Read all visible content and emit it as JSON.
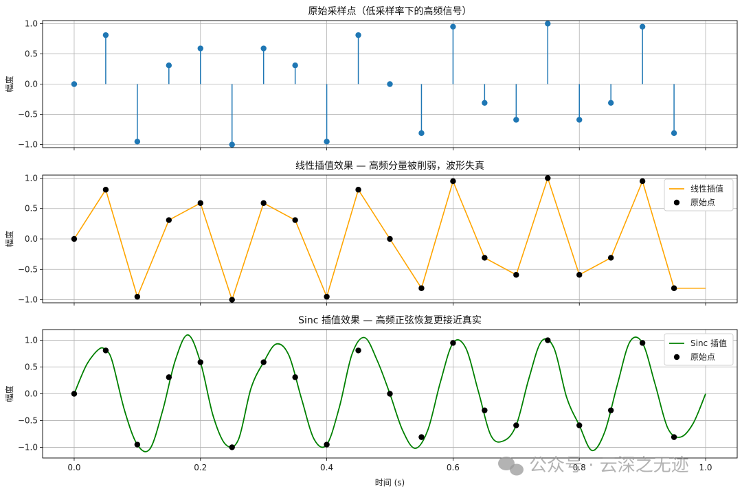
{
  "chart_data": [
    {
      "type": "stem",
      "title": "原始采样点（低采样率下的高频信号）",
      "ylabel": "幅度",
      "xlim": [
        -0.05,
        1.05
      ],
      "ylim": [
        -1.05,
        1.05
      ],
      "xticks": [
        0.0,
        0.2,
        0.4,
        0.6,
        0.8,
        1.0
      ],
      "yticks": [
        -1.0,
        -0.5,
        0.0,
        0.5,
        1.0
      ],
      "ytick_labels": [
        "−1.0",
        "−0.5",
        "0.0",
        "0.5",
        "1.0"
      ],
      "grid": true,
      "color": "#1f77b4",
      "series": [
        {
          "x": [
            0.0,
            0.05,
            0.1,
            0.15,
            0.2,
            0.25,
            0.3,
            0.35,
            0.4,
            0.45,
            0.5,
            0.55,
            0.6,
            0.65,
            0.7,
            0.75,
            0.8,
            0.85,
            0.9,
            0.95
          ],
          "y": [
            0.0,
            0.81,
            -0.95,
            0.31,
            0.59,
            -1.0,
            0.59,
            0.31,
            -0.95,
            0.81,
            0.0,
            -0.81,
            0.95,
            -0.31,
            -0.59,
            1.0,
            -0.59,
            -0.31,
            0.95,
            -0.81
          ]
        }
      ]
    },
    {
      "type": "line",
      "title": "线性插值效果 — 高频分量被削弱，波形失真",
      "ylabel": "幅度",
      "xlim": [
        -0.05,
        1.05
      ],
      "ylim": [
        -1.05,
        1.05
      ],
      "xticks": [
        0.0,
        0.2,
        0.4,
        0.6,
        0.8,
        1.0
      ],
      "yticks": [
        -1.0,
        -0.5,
        0.0,
        0.5,
        1.0
      ],
      "ytick_labels": [
        "−1.0",
        "−0.5",
        "0.0",
        "0.5",
        "1.0"
      ],
      "grid": true,
      "legend": "top-right",
      "series": [
        {
          "name": "线性插值",
          "color": "#ffa500",
          "x": [
            0.0,
            0.05,
            0.1,
            0.15,
            0.2,
            0.25,
            0.3,
            0.35,
            0.4,
            0.45,
            0.5,
            0.55,
            0.6,
            0.65,
            0.7,
            0.75,
            0.8,
            0.85,
            0.9,
            0.95,
            1.0
          ],
          "y": [
            0.0,
            0.81,
            -0.95,
            0.31,
            0.59,
            -1.0,
            0.59,
            0.31,
            -0.95,
            0.81,
            0.0,
            -0.81,
            0.95,
            -0.31,
            -0.59,
            1.0,
            -0.59,
            -0.31,
            0.95,
            -0.81,
            -0.81
          ]
        },
        {
          "name": "原始点",
          "color": "#000000",
          "markers_only": true,
          "x": [
            0.0,
            0.05,
            0.1,
            0.15,
            0.2,
            0.25,
            0.3,
            0.35,
            0.4,
            0.45,
            0.5,
            0.55,
            0.6,
            0.65,
            0.7,
            0.75,
            0.8,
            0.85,
            0.9,
            0.95
          ],
          "y": [
            0.0,
            0.81,
            -0.95,
            0.31,
            0.59,
            -1.0,
            0.59,
            0.31,
            -0.95,
            0.81,
            0.0,
            -0.81,
            0.95,
            -0.31,
            -0.59,
            1.0,
            -0.59,
            -0.31,
            0.95,
            -0.81
          ]
        }
      ]
    },
    {
      "type": "line",
      "title": "Sinc 插值效果 — 高频正弦恢复更接近真实",
      "ylabel": "幅度",
      "xlabel": "时间 (s)",
      "xlim": [
        -0.05,
        1.05
      ],
      "ylim": [
        -1.2,
        1.2
      ],
      "xticks": [
        0.0,
        0.2,
        0.4,
        0.6,
        0.8,
        1.0
      ],
      "xtick_labels": [
        "0.0",
        "0.2",
        "0.4",
        "0.6",
        "0.8",
        "1.0"
      ],
      "yticks": [
        -1.0,
        -0.5,
        0.0,
        0.5,
        1.0
      ],
      "ytick_labels": [
        "−1.0",
        "−0.5",
        "0.0",
        "0.5",
        "1.0"
      ],
      "grid": true,
      "legend": "top-right",
      "series": [
        {
          "name": "Sinc 插值",
          "color": "#008000",
          "x": [
            0.0,
            0.02,
            0.04,
            0.05,
            0.06,
            0.08,
            0.1,
            0.12,
            0.14,
            0.16,
            0.18,
            0.2,
            0.22,
            0.24,
            0.26,
            0.28,
            0.3,
            0.32,
            0.34,
            0.36,
            0.38,
            0.4,
            0.42,
            0.44,
            0.46,
            0.48,
            0.5,
            0.52,
            0.54,
            0.56,
            0.58,
            0.6,
            0.62,
            0.64,
            0.66,
            0.68,
            0.7,
            0.72,
            0.74,
            0.76,
            0.78,
            0.8,
            0.82,
            0.84,
            0.86,
            0.88,
            0.9,
            0.92,
            0.94,
            0.96,
            0.98,
            1.0
          ],
          "y": [
            0.0,
            0.55,
            0.84,
            0.81,
            0.62,
            -0.32,
            -0.95,
            -1.03,
            -0.32,
            0.62,
            1.1,
            0.59,
            -0.41,
            -0.95,
            -0.86,
            0.1,
            0.59,
            0.93,
            0.72,
            -0.09,
            -0.85,
            -0.95,
            -0.25,
            0.74,
            1.05,
            0.62,
            0.0,
            -0.68,
            -1.02,
            -0.68,
            0.22,
            0.95,
            0.86,
            0.05,
            -0.78,
            -0.88,
            -0.59,
            0.28,
            0.98,
            0.85,
            -0.07,
            -0.59,
            -1.06,
            -0.72,
            0.16,
            0.97,
            0.95,
            0.18,
            -0.64,
            -0.81,
            -0.56,
            0.0
          ]
        },
        {
          "name": "原始点",
          "color": "#000000",
          "markers_only": true,
          "x": [
            0.0,
            0.05,
            0.1,
            0.15,
            0.2,
            0.25,
            0.3,
            0.35,
            0.4,
            0.45,
            0.5,
            0.55,
            0.6,
            0.65,
            0.7,
            0.75,
            0.8,
            0.85,
            0.9,
            0.95
          ],
          "y": [
            0.0,
            0.81,
            -0.95,
            0.31,
            0.59,
            -1.0,
            0.59,
            0.31,
            -0.95,
            0.81,
            0.0,
            -0.81,
            0.95,
            -0.31,
            -0.59,
            1.0,
            -0.59,
            -0.31,
            0.95,
            -0.81
          ]
        }
      ]
    }
  ],
  "watermark": "公众号 · 云深之无迹",
  "watermark_icon": "wechat-icon"
}
